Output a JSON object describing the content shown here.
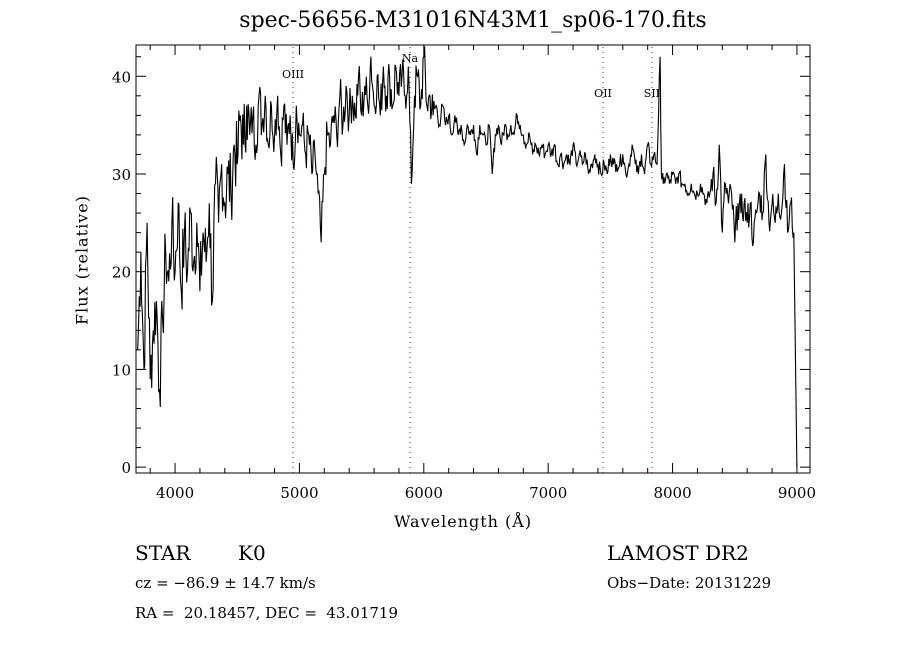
{
  "chart_data": {
    "type": "line",
    "title": "spec-56656-M31016N43M1_sp06-170.fits",
    "xlabel": "Wavelength (Å)",
    "ylabel": "Flux (relative)",
    "xlim": [
      3686,
      9105
    ],
    "ylim": [
      -0.6,
      43.2
    ],
    "xticks": [
      4000,
      5000,
      6000,
      7000,
      8000,
      9000
    ],
    "yticks": [
      0,
      10,
      20,
      30,
      40
    ],
    "grid": false,
    "line_color": "#000000",
    "marker_color": "#8b1a1a",
    "lines": [
      {
        "label": "OIII",
        "x": 4949
      },
      {
        "label": "Na",
        "x": 5889
      },
      {
        "label": "OII",
        "x": 7441
      },
      {
        "label": "SII",
        "x": 7834
      }
    ],
    "series": [
      {
        "name": "flux",
        "x": [
          3700,
          3725,
          3750,
          3775,
          3800,
          3825,
          3850,
          3875,
          3900,
          3925,
          3950,
          3975,
          4000,
          4025,
          4050,
          4075,
          4100,
          4125,
          4150,
          4175,
          4200,
          4225,
          4250,
          4275,
          4300,
          4325,
          4350,
          4375,
          4400,
          4425,
          4450,
          4475,
          4500,
          4525,
          4550,
          4575,
          4600,
          4625,
          4650,
          4675,
          4700,
          4725,
          4750,
          4775,
          4800,
          4825,
          4850,
          4875,
          4900,
          4925,
          4950,
          4975,
          5000,
          5025,
          5050,
          5075,
          5100,
          5125,
          5150,
          5175,
          5200,
          5225,
          5250,
          5275,
          5300,
          5325,
          5350,
          5375,
          5400,
          5425,
          5450,
          5475,
          5500,
          5525,
          5550,
          5575,
          5600,
          5625,
          5650,
          5675,
          5700,
          5725,
          5750,
          5775,
          5800,
          5825,
          5850,
          5875,
          5900,
          5925,
          5950,
          5975,
          6000,
          6025,
          6050,
          6075,
          6100,
          6125,
          6150,
          6175,
          6200,
          6225,
          6250,
          6275,
          6300,
          6325,
          6350,
          6375,
          6400,
          6425,
          6450,
          6475,
          6500,
          6525,
          6550,
          6575,
          6600,
          6625,
          6650,
          6675,
          6700,
          6725,
          6750,
          6775,
          6800,
          6825,
          6850,
          6875,
          6900,
          6925,
          6950,
          6975,
          7000,
          7025,
          7050,
          7075,
          7100,
          7125,
          7150,
          7175,
          7200,
          7225,
          7250,
          7275,
          7300,
          7325,
          7350,
          7375,
          7400,
          7425,
          7450,
          7475,
          7500,
          7525,
          7550,
          7575,
          7600,
          7625,
          7650,
          7675,
          7700,
          7725,
          7750,
          7775,
          7800,
          7825,
          7850,
          7875,
          7900,
          7910,
          7925,
          7950,
          7975,
          8000,
          8025,
          8050,
          8075,
          8100,
          8125,
          8150,
          8175,
          8200,
          8225,
          8250,
          8275,
          8300,
          8325,
          8350,
          8375,
          8400,
          8425,
          8450,
          8475,
          8500,
          8525,
          8550,
          8575,
          8600,
          8625,
          8650,
          8675,
          8700,
          8725,
          8750,
          8775,
          8800,
          8825,
          8850,
          8875,
          8900,
          8925,
          8950,
          8975,
          9000
        ],
        "y": [
          12,
          22,
          10,
          25,
          9,
          14,
          17,
          8,
          15,
          22,
          19,
          25,
          20,
          27,
          18,
          24,
          20,
          26,
          21,
          25,
          18,
          24,
          21,
          27,
          17,
          29,
          25,
          31,
          27,
          30,
          28,
          33,
          31,
          36,
          33,
          37,
          34,
          36,
          33,
          38,
          35,
          38,
          33,
          37,
          34,
          38,
          32,
          37,
          33,
          36,
          31,
          37,
          34,
          35,
          32,
          34,
          30,
          32,
          28,
          23,
          30,
          34,
          33,
          36,
          34,
          38,
          35,
          39,
          36,
          38,
          36,
          40,
          36,
          39,
          37,
          42,
          37,
          40,
          36,
          41,
          38,
          40,
          37,
          41,
          38,
          40,
          38,
          41,
          29,
          38,
          40,
          37,
          42,
          37,
          38,
          36,
          37,
          35,
          37,
          35,
          36,
          34,
          36,
          34,
          35,
          33,
          35,
          34,
          35,
          32,
          35,
          34,
          33,
          35,
          30,
          34,
          35,
          33,
          35,
          34,
          35,
          34,
          36,
          35,
          34,
          33,
          34,
          32,
          33,
          32,
          33,
          32,
          33,
          32,
          33,
          31,
          32,
          31,
          32,
          31,
          33,
          31,
          32,
          31,
          32,
          30,
          31,
          32,
          31,
          30,
          31,
          30,
          32,
          31,
          31,
          31,
          32,
          30,
          31,
          33,
          31,
          30,
          32,
          30,
          33,
          31,
          32,
          31,
          42,
          30,
          29,
          30,
          29,
          30,
          29,
          30,
          29,
          29,
          28,
          29,
          28,
          28,
          29,
          28,
          27,
          28,
          30,
          27,
          33,
          24,
          29,
          27,
          28,
          23,
          27,
          26,
          27,
          25,
          27,
          23,
          26,
          28,
          26,
          32,
          25,
          27,
          25,
          28,
          26,
          31,
          24,
          27,
          24,
          0
        ]
      }
    ]
  },
  "footer": {
    "object_class": "STAR",
    "subclass": "K0",
    "survey": "LAMOST DR2",
    "cz": "cz = −86.9 ± 14.7 km/s",
    "obs_date": "Obs−Date: 20131229",
    "coords": "RA =  20.18457, DEC =  43.01719"
  }
}
